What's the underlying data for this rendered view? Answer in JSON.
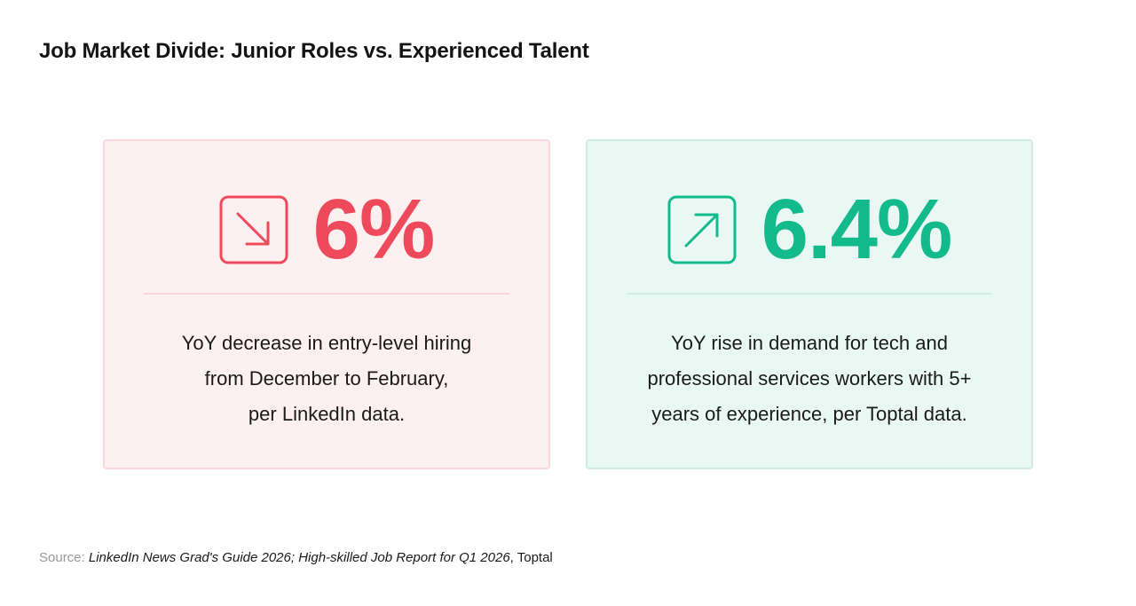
{
  "title": "Job Market Divide: Junior Roles vs. Experienced Talent",
  "cards": [
    {
      "value": "6%",
      "icon": "arrow-down-right-icon",
      "accent_color": "#ee4a5c",
      "description_lines": [
        "YoY decrease in entry-level hiring",
        "from December to February,",
        "per LinkedIn data."
      ]
    },
    {
      "value": "6.4%",
      "icon": "arrow-up-right-icon",
      "accent_color": "#13bb8c",
      "description_lines": [
        "YoY rise in demand for tech and",
        "professional services workers with 5+",
        "years of experience, per Toptal data."
      ]
    }
  ],
  "source": {
    "label": "Source:",
    "titles": "LinkedIn News Grad's Guide 2026; High-skilled Job Report for Q1 2026",
    "suffix": ", Toptal"
  }
}
